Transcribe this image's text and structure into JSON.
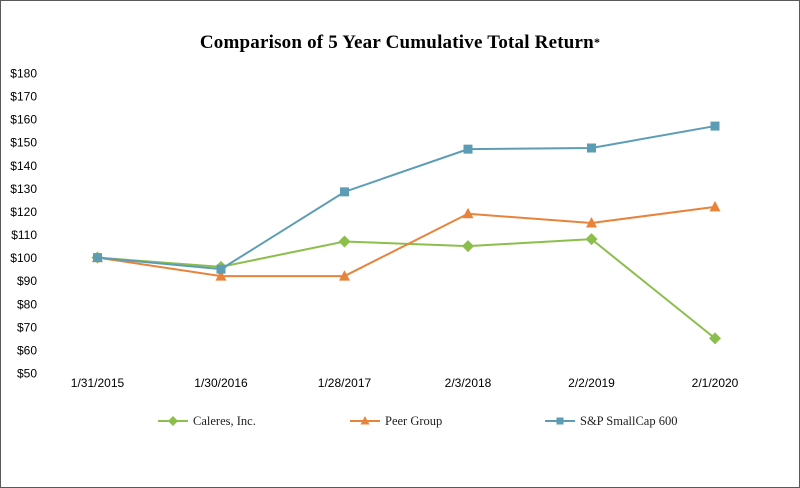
{
  "chart_data": {
    "type": "line",
    "title": "Comparison of 5 Year Cumulative Total Return",
    "title_note": "*",
    "categories": [
      "1/31/2015",
      "1/30/2016",
      "1/28/2017",
      "2/3/2018",
      "2/2/2019",
      "2/1/2020"
    ],
    "series": [
      {
        "name": "Caleres, Inc.",
        "marker": "diamond",
        "color": "#8CBE4C",
        "values": [
          100,
          96,
          107,
          105,
          108,
          65
        ]
      },
      {
        "name": "Peer Group",
        "marker": "triangle",
        "color": "#E8833C",
        "values": [
          100,
          92,
          92,
          119,
          115,
          122
        ]
      },
      {
        "name": "S&P SmallCap 600",
        "marker": "square",
        "color": "#5C9DB5",
        "values": [
          100,
          95,
          128.5,
          147,
          147.5,
          157
        ]
      }
    ],
    "y_ticks": [
      180,
      170,
      160,
      150,
      140,
      130,
      120,
      110,
      100,
      90,
      80,
      70,
      60,
      50
    ],
    "y_tick_prefix": "$",
    "ylim": [
      50,
      180
    ],
    "grid": false,
    "legend_position": "bottom"
  }
}
